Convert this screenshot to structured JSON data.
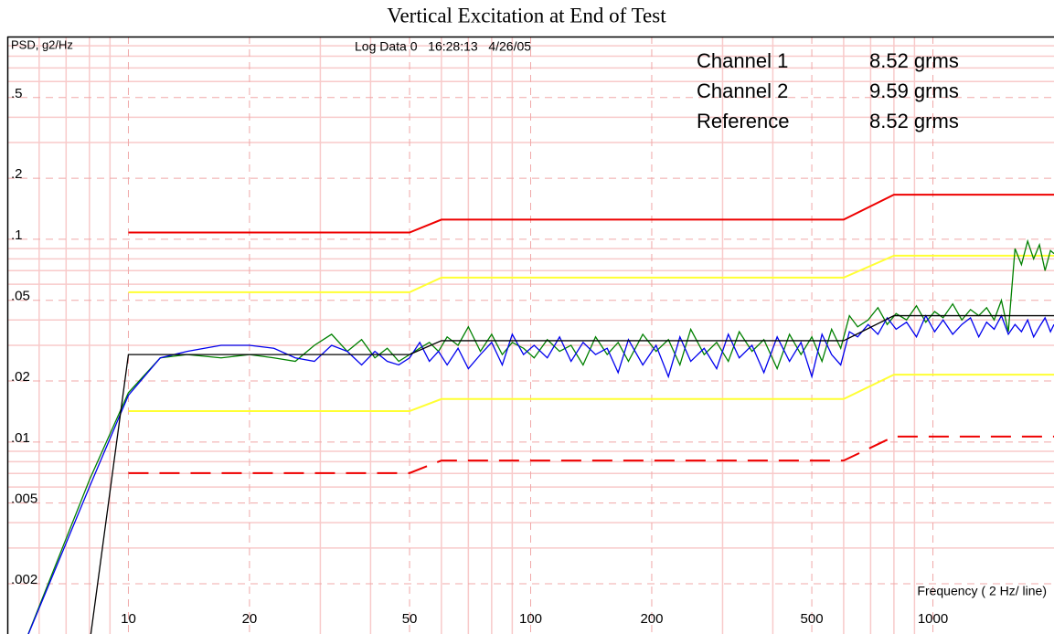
{
  "chart_data": {
    "type": "line",
    "title": "Vertical Excitation at End of Test",
    "header": "Log Data 0   16:28:13   4/26/05",
    "y_label": "PSD, g2/Hz",
    "x_label": "Frequency ( 2 Hz/ line)",
    "xscale": "log",
    "yscale": "log",
    "grid": true,
    "xlim": [
      5,
      2000
    ],
    "ylim": [
      0.00113,
      1
    ],
    "xticks": [
      10,
      20,
      50,
      100,
      200,
      500,
      1000
    ],
    "xminor_ticks": [
      6,
      7,
      8,
      9,
      30,
      40,
      60,
      70,
      80,
      90,
      300,
      400,
      600,
      700,
      800,
      900
    ],
    "yticks": [
      {
        "value": 0.5,
        "label": ".5"
      },
      {
        "value": 0.2,
        "label": ".2"
      },
      {
        "value": 0.1,
        "label": ".1"
      },
      {
        "value": 0.05,
        "label": ".05"
      },
      {
        "value": 0.02,
        "label": ".02"
      },
      {
        "value": 0.01,
        "label": ".01"
      },
      {
        "value": 0.005,
        "label": ".005"
      },
      {
        "value": 0.002,
        "label": ".002"
      }
    ],
    "yminor_ticks": [
      0.9,
      0.8,
      0.7,
      0.6,
      0.4,
      0.3,
      0.09,
      0.08,
      0.07,
      0.06,
      0.04,
      0.03,
      0.009,
      0.008,
      0.007,
      0.006,
      0.004,
      0.003
    ],
    "series": [
      {
        "name": "Channel 1",
        "summary": "8.52 grms",
        "color": "#0000ee",
        "x": [
          5.5,
          8,
          10,
          12,
          14,
          17,
          20,
          23,
          26,
          29,
          32,
          35,
          38,
          41,
          44,
          47,
          50,
          53,
          56,
          59,
          62,
          66,
          70,
          75,
          80,
          85,
          90,
          96,
          102,
          110,
          118,
          126,
          135,
          145,
          155,
          165,
          175,
          190,
          205,
          220,
          235,
          250,
          270,
          290,
          310,
          330,
          355,
          380,
          410,
          440,
          470,
          500,
          530,
          560,
          590,
          620,
          650,
          690,
          730,
          770,
          810,
          860,
          910,
          960,
          1010,
          1060,
          1120,
          1180,
          1240,
          1300,
          1360,
          1420,
          1480,
          1540,
          1600,
          1660,
          1720,
          1780,
          1840,
          1900,
          1960,
          2000
        ],
        "values": [
          0.001,
          0.006,
          0.017,
          0.026,
          0.028,
          0.03,
          0.03,
          0.029,
          0.026,
          0.025,
          0.03,
          0.028,
          0.024,
          0.028,
          0.025,
          0.024,
          0.026,
          0.031,
          0.025,
          0.028,
          0.024,
          0.029,
          0.023,
          0.027,
          0.031,
          0.024,
          0.034,
          0.027,
          0.03,
          0.026,
          0.033,
          0.025,
          0.031,
          0.027,
          0.029,
          0.022,
          0.032,
          0.024,
          0.03,
          0.021,
          0.033,
          0.025,
          0.029,
          0.023,
          0.034,
          0.026,
          0.03,
          0.022,
          0.033,
          0.025,
          0.031,
          0.021,
          0.034,
          0.027,
          0.024,
          0.035,
          0.033,
          0.038,
          0.034,
          0.041,
          0.036,
          0.039,
          0.033,
          0.042,
          0.035,
          0.04,
          0.034,
          0.038,
          0.041,
          0.033,
          0.039,
          0.036,
          0.042,
          0.034,
          0.038,
          0.035,
          0.04,
          0.033,
          0.037,
          0.041,
          0.035,
          0.038
        ]
      },
      {
        "name": "Channel 2",
        "summary": "9.59 grms",
        "color": "#008000",
        "x": [
          5.5,
          8,
          10,
          12,
          14,
          17,
          20,
          23,
          26,
          29,
          32,
          35,
          38,
          41,
          44,
          47,
          50,
          53,
          56,
          59,
          62,
          66,
          70,
          75,
          80,
          85,
          90,
          96,
          102,
          110,
          118,
          126,
          135,
          145,
          155,
          165,
          175,
          190,
          205,
          220,
          235,
          250,
          270,
          290,
          310,
          330,
          355,
          380,
          410,
          440,
          470,
          500,
          530,
          560,
          590,
          620,
          650,
          690,
          730,
          770,
          810,
          860,
          910,
          960,
          1010,
          1060,
          1120,
          1180,
          1240,
          1300,
          1360,
          1420,
          1480,
          1540,
          1600,
          1660,
          1720,
          1780,
          1840,
          1900,
          1960,
          2000
        ],
        "values": [
          0.001,
          0.0065,
          0.0175,
          0.026,
          0.027,
          0.026,
          0.027,
          0.026,
          0.025,
          0.03,
          0.034,
          0.028,
          0.032,
          0.026,
          0.029,
          0.025,
          0.027,
          0.029,
          0.031,
          0.028,
          0.033,
          0.03,
          0.037,
          0.028,
          0.034,
          0.027,
          0.031,
          0.029,
          0.026,
          0.032,
          0.028,
          0.03,
          0.024,
          0.033,
          0.027,
          0.031,
          0.025,
          0.034,
          0.028,
          0.032,
          0.024,
          0.036,
          0.027,
          0.031,
          0.025,
          0.035,
          0.028,
          0.032,
          0.023,
          0.034,
          0.027,
          0.033,
          0.025,
          0.036,
          0.029,
          0.042,
          0.037,
          0.04,
          0.046,
          0.038,
          0.043,
          0.04,
          0.047,
          0.039,
          0.044,
          0.041,
          0.048,
          0.04,
          0.045,
          0.042,
          0.046,
          0.04,
          0.05,
          0.035,
          0.09,
          0.075,
          0.098,
          0.08,
          0.094,
          0.07,
          0.088,
          0.085
        ]
      },
      {
        "name": "Reference",
        "summary": "8.52 grms",
        "color": "#000000",
        "x": [
          8,
          10,
          50,
          60,
          600,
          800,
          2000
        ],
        "values": [
          0.001,
          0.027,
          0.027,
          0.0316,
          0.0316,
          0.042,
          0.042
        ]
      }
    ],
    "limit_lines": [
      {
        "color": "#ee0000",
        "style": "solid",
        "x": [
          10,
          50,
          60,
          600,
          800,
          2000
        ],
        "values": [
          0.108,
          0.108,
          0.125,
          0.125,
          0.166,
          0.166
        ]
      },
      {
        "color": "#ffff33",
        "style": "solid",
        "x": [
          10,
          50,
          60,
          600,
          800,
          2000
        ],
        "values": [
          0.0548,
          0.0548,
          0.0647,
          0.0647,
          0.083,
          0.083
        ]
      },
      {
        "color": "#ffff33",
        "style": "solid",
        "x": [
          10,
          50,
          60,
          600,
          800,
          2000
        ],
        "values": [
          0.0142,
          0.0142,
          0.0163,
          0.0163,
          0.0215,
          0.0215
        ]
      },
      {
        "color": "#ee0000",
        "style": "dashed",
        "x": [
          10,
          50,
          60,
          600,
          800,
          2000
        ],
        "values": [
          0.00703,
          0.00703,
          0.0081,
          0.0081,
          0.01064,
          0.01064
        ]
      }
    ]
  }
}
